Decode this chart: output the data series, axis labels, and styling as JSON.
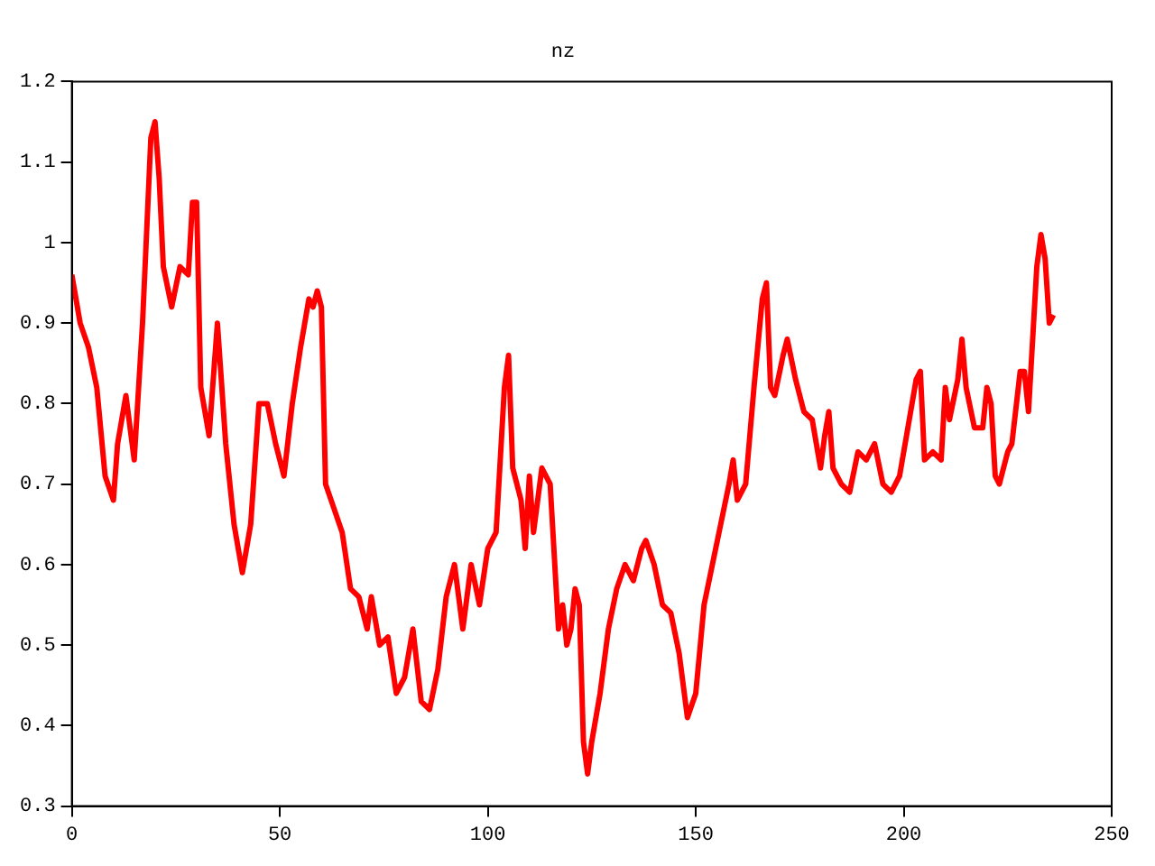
{
  "chart_data": {
    "type": "line",
    "title": "nz",
    "x": [
      0,
      2,
      4,
      6,
      8,
      10,
      11,
      13,
      15,
      17,
      19,
      20,
      21,
      22,
      24,
      26,
      28,
      29,
      30,
      31,
      33,
      35,
      37,
      39,
      41,
      43,
      45,
      47,
      49,
      51,
      53,
      55,
      57,
      58,
      59,
      60,
      61,
      63,
      65,
      67,
      69,
      71,
      72,
      74,
      76,
      78,
      80,
      82,
      84,
      86,
      88,
      90,
      92,
      94,
      96,
      98,
      100,
      102,
      104,
      105,
      106,
      108,
      109,
      110,
      111,
      113,
      115,
      117,
      118,
      119,
      120,
      121,
      122,
      123,
      124,
      125,
      127,
      129,
      131,
      133,
      135,
      137,
      138,
      140,
      142,
      144,
      146,
      148,
      150,
      152,
      154,
      156,
      158,
      159,
      160,
      162,
      164,
      166,
      167,
      168,
      169,
      171,
      172,
      174,
      176,
      178,
      180,
      181,
      182,
      183,
      185,
      187,
      189,
      191,
      193,
      195,
      197,
      199,
      201,
      203,
      204,
      205,
      207,
      209,
      210,
      211,
      213,
      214,
      215,
      217,
      219,
      220,
      221,
      222,
      223,
      225,
      226,
      228,
      229,
      230,
      231,
      232,
      233,
      234,
      235,
      236
    ],
    "series": [
      {
        "color": "#ff0000",
        "values": [
          0.96,
          0.9,
          0.87,
          0.82,
          0.71,
          0.68,
          0.75,
          0.81,
          0.73,
          0.9,
          1.13,
          1.15,
          1.08,
          0.97,
          0.92,
          0.97,
          0.96,
          1.05,
          1.05,
          0.82,
          0.76,
          0.9,
          0.75,
          0.65,
          0.59,
          0.65,
          0.8,
          0.8,
          0.75,
          0.71,
          0.8,
          0.87,
          0.93,
          0.92,
          0.94,
          0.92,
          0.7,
          0.67,
          0.64,
          0.57,
          0.56,
          0.52,
          0.56,
          0.5,
          0.51,
          0.44,
          0.46,
          0.52,
          0.43,
          0.42,
          0.47,
          0.56,
          0.6,
          0.52,
          0.6,
          0.55,
          0.62,
          0.64,
          0.82,
          0.86,
          0.72,
          0.68,
          0.62,
          0.71,
          0.64,
          0.72,
          0.7,
          0.52,
          0.55,
          0.5,
          0.52,
          0.57,
          0.55,
          0.38,
          0.34,
          0.38,
          0.44,
          0.52,
          0.57,
          0.6,
          0.58,
          0.62,
          0.63,
          0.6,
          0.55,
          0.54,
          0.49,
          0.41,
          0.44,
          0.55,
          0.6,
          0.65,
          0.7,
          0.73,
          0.68,
          0.7,
          0.82,
          0.93,
          0.95,
          0.82,
          0.81,
          0.86,
          0.88,
          0.83,
          0.79,
          0.78,
          0.72,
          0.76,
          0.79,
          0.72,
          0.7,
          0.69,
          0.74,
          0.73,
          0.75,
          0.7,
          0.69,
          0.71,
          0.77,
          0.83,
          0.84,
          0.73,
          0.74,
          0.73,
          0.82,
          0.78,
          0.83,
          0.88,
          0.82,
          0.77,
          0.77,
          0.82,
          0.8,
          0.71,
          0.7,
          0.74,
          0.75,
          0.84,
          0.84,
          0.79,
          0.88,
          0.97,
          1.01,
          0.98,
          0.9,
          0.91
        ]
      }
    ],
    "xlim": [
      0,
      250
    ],
    "xticks": [
      0,
      50,
      100,
      150,
      200,
      250
    ],
    "ylim": [
      0.3,
      1.2
    ],
    "yticks": [
      0.3,
      0.4,
      0.5,
      0.6,
      0.7,
      0.8,
      0.9,
      1,
      1.1,
      1.2
    ],
    "grid": false,
    "legend": false,
    "marker": "none",
    "line_style": "solid"
  }
}
